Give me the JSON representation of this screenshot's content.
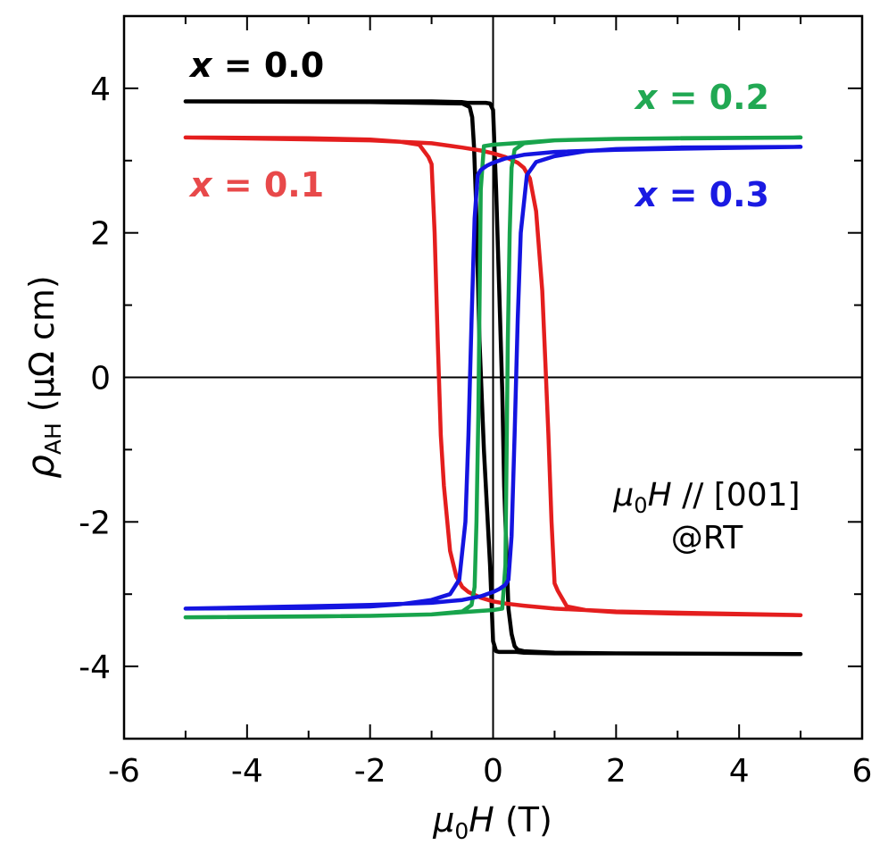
{
  "chart_data": {
    "type": "line",
    "xlabel": {
      "symbol": "μ",
      "sub": "0",
      "var": "H",
      "unit": " (T)"
    },
    "ylabel": {
      "symbol": "ρ",
      "sub": "AH",
      "unit": " (μΩ cm)"
    },
    "xlim": [
      -6,
      6
    ],
    "ylim": [
      -5,
      5
    ],
    "xticks": [
      -6,
      -4,
      -2,
      0,
      2,
      4,
      6
    ],
    "yticks": [
      -4,
      -2,
      0,
      2,
      4
    ],
    "grid": false,
    "zero_lines": true,
    "annotation": {
      "line1": {
        "symbol": "μ",
        "sub": "0",
        "var": "H",
        "rest": " // [001]"
      },
      "line2": "@RT"
    },
    "series": [
      {
        "name": "x = 0.0",
        "label_var": "x",
        "label_rest": " = 0.0",
        "color": "#000000",
        "label_color": "#000000",
        "x": [
          -5,
          -2,
          -0.5,
          -0.38,
          -0.34,
          -0.31,
          -0.28,
          -0.22,
          -0.15,
          -0.05,
          0.0,
          0.05,
          0.1,
          0.15,
          0.2,
          0.25,
          0.3,
          0.38,
          0.5,
          1,
          2,
          5,
          5,
          2,
          1,
          0.5,
          0.4,
          0.35,
          0.3,
          0.25,
          0.18,
          0.15,
          0.1,
          0.05,
          0.0,
          -0.05,
          -0.12,
          -0.2,
          -0.25,
          -0.3,
          -0.36,
          -0.42,
          -0.5,
          -1,
          -2,
          -5
        ],
        "y": [
          3.82,
          3.81,
          3.79,
          3.74,
          3.6,
          3.2,
          2.5,
          0.5,
          -1.0,
          -2.6,
          -3.65,
          -3.79,
          -3.8,
          -3.8,
          -3.8,
          -3.8,
          -3.8,
          -3.8,
          -3.81,
          -3.82,
          -3.82,
          -3.83,
          -3.83,
          -3.82,
          -3.81,
          -3.79,
          -3.77,
          -3.72,
          -3.55,
          -3.2,
          -1.5,
          -0.2,
          1.2,
          2.6,
          3.7,
          3.79,
          3.8,
          3.8,
          3.8,
          3.8,
          3.8,
          3.8,
          3.81,
          3.82,
          3.82,
          3.82
        ]
      },
      {
        "name": "x = 0.1",
        "label_var": "x",
        "label_rest": " = 0.1",
        "color": "#e41e1e",
        "label_color": "#e8494a",
        "x": [
          -5,
          -3,
          -2,
          -1.5,
          -1.2,
          -1.05,
          -1.0,
          -0.95,
          -0.9,
          -0.85,
          -0.8,
          -0.7,
          -0.6,
          -0.5,
          -0.4,
          -0.2,
          0,
          0.2,
          0.5,
          1,
          2,
          5,
          5,
          3,
          2,
          1.5,
          1.2,
          1.05,
          1.0,
          0.95,
          0.9,
          0.85,
          0.8,
          0.7,
          0.6,
          0.5,
          0.4,
          0.3,
          0.2,
          0,
          -0.2,
          -0.5,
          -1,
          -2,
          -5
        ],
        "y": [
          3.32,
          3.31,
          3.29,
          3.26,
          3.22,
          3.05,
          2.95,
          2.0,
          0.5,
          -0.8,
          -1.5,
          -2.4,
          -2.75,
          -2.9,
          -2.97,
          -3.05,
          -3.1,
          -3.13,
          -3.16,
          -3.2,
          -3.24,
          -3.29,
          -3.29,
          -3.27,
          -3.25,
          -3.22,
          -3.17,
          -2.95,
          -2.85,
          -2.0,
          -0.8,
          0.2,
          1.2,
          2.3,
          2.75,
          2.9,
          2.97,
          3.01,
          3.05,
          3.1,
          3.14,
          3.18,
          3.24,
          3.28,
          3.32
        ]
      },
      {
        "name": "x = 0.2",
        "label_var": "x",
        "label_rest": " = 0.2",
        "color": "#18a44c",
        "label_color": "#21a853",
        "x": [
          -5,
          -3,
          -2,
          -1,
          -0.5,
          -0.35,
          -0.3,
          -0.27,
          -0.24,
          -0.22,
          -0.2,
          -0.15,
          0,
          0.5,
          1,
          2,
          5,
          5,
          3,
          2,
          1,
          0.5,
          0.35,
          0.3,
          0.27,
          0.24,
          0.22,
          0.2,
          0.15,
          0,
          -0.5,
          -1,
          -2,
          -5
        ],
        "y": [
          -3.32,
          -3.31,
          -3.3,
          -3.28,
          -3.24,
          -3.15,
          -2.9,
          -2.0,
          -0.5,
          1.0,
          2.6,
          3.2,
          3.22,
          3.25,
          3.28,
          3.3,
          3.32,
          3.32,
          3.31,
          3.3,
          3.28,
          3.24,
          3.15,
          2.9,
          2.0,
          0.5,
          -1.0,
          -2.6,
          -3.2,
          -3.22,
          -3.25,
          -3.28,
          -3.3,
          -3.32
        ]
      },
      {
        "name": "x = 0.3",
        "label_var": "x",
        "label_rest": " = 0.3",
        "color": "#1414e0",
        "label_color": "#1a1ae2",
        "x": [
          -5,
          -3,
          -2,
          -1.5,
          -1.0,
          -0.7,
          -0.55,
          -0.45,
          -0.4,
          -0.35,
          -0.3,
          -0.25,
          -0.2,
          -0.1,
          0,
          0.2,
          0.5,
          1,
          2,
          5,
          5,
          3,
          2,
          1.5,
          1.0,
          0.7,
          0.55,
          0.45,
          0.4,
          0.35,
          0.3,
          0.25,
          0.2,
          0.1,
          0,
          -0.2,
          -0.5,
          -1,
          -2,
          -5
        ],
        "y": [
          -3.2,
          -3.19,
          -3.17,
          -3.14,
          -3.08,
          -3.0,
          -2.8,
          -2.0,
          -0.8,
          0.8,
          2.2,
          2.8,
          2.87,
          2.93,
          2.97,
          3.03,
          3.08,
          3.12,
          3.15,
          3.19,
          3.19,
          3.18,
          3.16,
          3.13,
          3.06,
          2.98,
          2.8,
          2.0,
          0.8,
          -0.8,
          -2.2,
          -2.8,
          -2.87,
          -2.93,
          -2.97,
          -3.03,
          -3.08,
          -3.12,
          -3.15,
          -3.2
        ]
      }
    ]
  }
}
